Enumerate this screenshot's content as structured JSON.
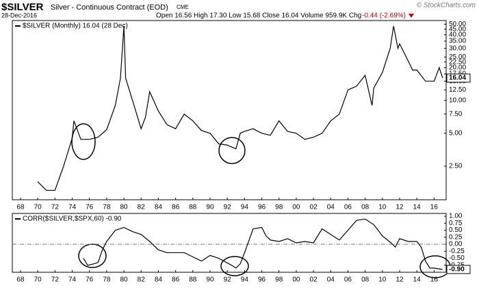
{
  "chart_data": [
    {
      "type": "line",
      "title": "$SILVER",
      "subtitle": "Silver - Continuous Contract (EOD)",
      "exchange": "CME",
      "date": "28-Dec-2016",
      "quote": "Open 16.56 High 17.30 Low 15.68 Close 16.04 Volume 959.9K Chg",
      "change": "-0.44 (-2.69%)",
      "credit": "© StockCharts.com",
      "log_y": true,
      "xlim": [
        1967.05,
        2017.4
      ],
      "ylim": [
        1.23,
        54
      ],
      "xticks": [
        {
          "value": 1968,
          "label": "68"
        },
        {
          "value": 1970,
          "label": "70"
        },
        {
          "value": 1972,
          "label": "72"
        },
        {
          "value": 1974,
          "label": "74"
        },
        {
          "value": 1976,
          "label": "76"
        },
        {
          "value": 1978,
          "label": "78"
        },
        {
          "value": 1980,
          "label": "80"
        },
        {
          "value": 1982,
          "label": "82"
        },
        {
          "value": 1984,
          "label": "84"
        },
        {
          "value": 1986,
          "label": "86"
        },
        {
          "value": 1988,
          "label": "88"
        },
        {
          "value": 1990,
          "label": "90"
        },
        {
          "value": 1992,
          "label": "92"
        },
        {
          "value": 1994,
          "label": "94"
        },
        {
          "value": 1996,
          "label": "96"
        },
        {
          "value": 1998,
          "label": "98"
        },
        {
          "value": 2000,
          "label": "00"
        },
        {
          "value": 2002,
          "label": "02"
        },
        {
          "value": 2004,
          "label": "04"
        },
        {
          "value": 2006,
          "label": "06"
        },
        {
          "value": 2008,
          "label": "08"
        },
        {
          "value": 2010,
          "label": "10"
        },
        {
          "value": 2012,
          "label": "12"
        },
        {
          "value": 2014,
          "label": "14"
        },
        {
          "value": 2016,
          "label": "16"
        }
      ],
      "yticks": [
        {
          "value": 2.5,
          "label": "2.50"
        },
        {
          "value": 5,
          "label": "5.00"
        },
        {
          "value": 7.5,
          "label": "7.50"
        },
        {
          "value": 10,
          "label": "10.00"
        },
        {
          "value": 12.5,
          "label": "12.50"
        },
        {
          "value": 15,
          "label": "15.00"
        },
        {
          "value": 17.5,
          "label": "17.50"
        },
        {
          "value": 20,
          "label": "20.00"
        },
        {
          "value": 22.5,
          "label": "22.50"
        },
        {
          "value": 25,
          "label": "25.00"
        },
        {
          "value": 30,
          "label": "30.00"
        },
        {
          "value": 35,
          "label": "35.00"
        },
        {
          "value": 40,
          "label": "40.00"
        },
        {
          "value": 45,
          "label": "45.00"
        },
        {
          "value": 50,
          "label": "50.00"
        }
      ],
      "series": [
        {
          "name": "$SILVER (Monthly) 16.04 (28 Dec)",
          "color": "#000000",
          "x": [
            1970,
            1971,
            1972,
            1973,
            1974,
            1974.2,
            1975,
            1976,
            1977,
            1978,
            1979,
            1979.6,
            1980,
            1980.2,
            1981,
            1982,
            1982.5,
            1983,
            1984,
            1985,
            1986,
            1987,
            1988,
            1989,
            1990,
            1991,
            1992,
            1993,
            1993.5,
            1994,
            1995,
            1996,
            1997,
            1998,
            1999,
            2000,
            2001,
            2002,
            2003,
            2004,
            2005,
            2006,
            2007,
            2008,
            2008.8,
            2009,
            2010,
            2010.9,
            2011.3,
            2011.8,
            2012,
            2013,
            2013.5,
            2014,
            2015,
            2016,
            2016.6,
            2016.99
          ],
          "values": [
            1.8,
            1.5,
            1.5,
            2.5,
            4.5,
            6.5,
            4.4,
            4.4,
            4.6,
            5.4,
            9,
            16,
            48,
            16,
            10,
            5.5,
            7,
            12,
            8,
            6,
            5.5,
            7.5,
            6.5,
            5.3,
            5,
            4,
            3.9,
            3.6,
            5,
            5.2,
            5.5,
            5,
            4.8,
            6.5,
            5.2,
            5,
            4.4,
            4.6,
            5,
            6.5,
            7.5,
            12.5,
            13.5,
            17,
            9,
            13,
            18,
            30,
            48,
            30,
            33,
            23,
            19,
            19,
            15,
            15,
            20,
            16.04
          ]
        }
      ]
    },
    {
      "type": "line",
      "ylim": [
        -1.0,
        1.1
      ],
      "xlim": [
        1967.05,
        2017.4
      ],
      "xticks": [
        {
          "value": 1968,
          "label": "68"
        },
        {
          "value": 1970,
          "label": "70"
        },
        {
          "value": 1972,
          "label": "72"
        },
        {
          "value": 1974,
          "label": "74"
        },
        {
          "value": 1976,
          "label": "76"
        },
        {
          "value": 1978,
          "label": "78"
        },
        {
          "value": 1980,
          "label": "80"
        },
        {
          "value": 1982,
          "label": "82"
        },
        {
          "value": 1984,
          "label": "84"
        },
        {
          "value": 1986,
          "label": "86"
        },
        {
          "value": 1988,
          "label": "88"
        },
        {
          "value": 1990,
          "label": "90"
        },
        {
          "value": 1992,
          "label": "92"
        },
        {
          "value": 1994,
          "label": "94"
        },
        {
          "value": 1996,
          "label": "96"
        },
        {
          "value": 1998,
          "label": "98"
        },
        {
          "value": 2000,
          "label": "00"
        },
        {
          "value": 2002,
          "label": "02"
        },
        {
          "value": 2004,
          "label": "04"
        },
        {
          "value": 2006,
          "label": "06"
        },
        {
          "value": 2008,
          "label": "08"
        },
        {
          "value": 2010,
          "label": "10"
        },
        {
          "value": 2012,
          "label": "12"
        },
        {
          "value": 2014,
          "label": "14"
        },
        {
          "value": 2016,
          "label": "16"
        }
      ],
      "yticks": [
        {
          "value": 1,
          "label": "1.00"
        },
        {
          "value": 0.75,
          "label": "0.75"
        },
        {
          "value": 0.5,
          "label": "0.50"
        },
        {
          "value": 0.25,
          "label": "0.25"
        },
        {
          "value": 0,
          "label": "0.00"
        },
        {
          "value": -0.25,
          "label": "-0.25"
        },
        {
          "value": -0.5,
          "label": "-0.50"
        },
        {
          "value": -0.75,
          "label": "-0.75"
        }
      ],
      "series": [
        {
          "name": "CORR($SILVER,$SPX,60) -0.90",
          "color": "#000000",
          "x": [
            1975.3,
            1975.8,
            1976.5,
            1977,
            1977.5,
            1978,
            1979,
            1980,
            1981,
            1982,
            1983,
            1984,
            1985,
            1986,
            1987,
            1988,
            1989,
            1990,
            1991,
            1992.5,
            1993,
            1993.5,
            1994,
            1995,
            1996,
            1996.5,
            1997,
            1998,
            1999,
            2000,
            2001,
            2002,
            2003,
            2004,
            2005,
            2006,
            2007,
            2008,
            2009,
            2010,
            2011,
            2011.5,
            2012,
            2013,
            2014,
            2014.5,
            2015,
            2015.5,
            2016,
            2016.99
          ],
          "values": [
            -0.5,
            -0.75,
            -0.7,
            -0.65,
            -0.2,
            0.1,
            0.5,
            0.6,
            0.45,
            0.35,
            0.1,
            -0.2,
            -0.3,
            -0.3,
            -0.3,
            -0.45,
            -0.6,
            -0.4,
            -0.5,
            -0.75,
            -0.85,
            -0.7,
            -0.3,
            0.55,
            0.6,
            0.3,
            0.15,
            0.1,
            0.2,
            0.05,
            0.1,
            0.05,
            0.55,
            0.35,
            0.15,
            0.5,
            0.85,
            0.9,
            0.7,
            0.3,
            0.05,
            -0.1,
            0.2,
            0.1,
            0.1,
            -0.1,
            -0.6,
            -0.85,
            -0.85,
            -0.9
          ],
          "value_labels": [
            null,
            null,
            null,
            null,
            null,
            null,
            null,
            null,
            null,
            null,
            null,
            null,
            null,
            null,
            null,
            null,
            null,
            null,
            null,
            null,
            null,
            null,
            null,
            null,
            null,
            null,
            null,
            null,
            null,
            null,
            null,
            null,
            null,
            null,
            null,
            null,
            null,
            null,
            null,
            null,
            null,
            null,
            null,
            null,
            null,
            null,
            null,
            null,
            null,
            "-0.90"
          ]
        }
      ]
    }
  ]
}
